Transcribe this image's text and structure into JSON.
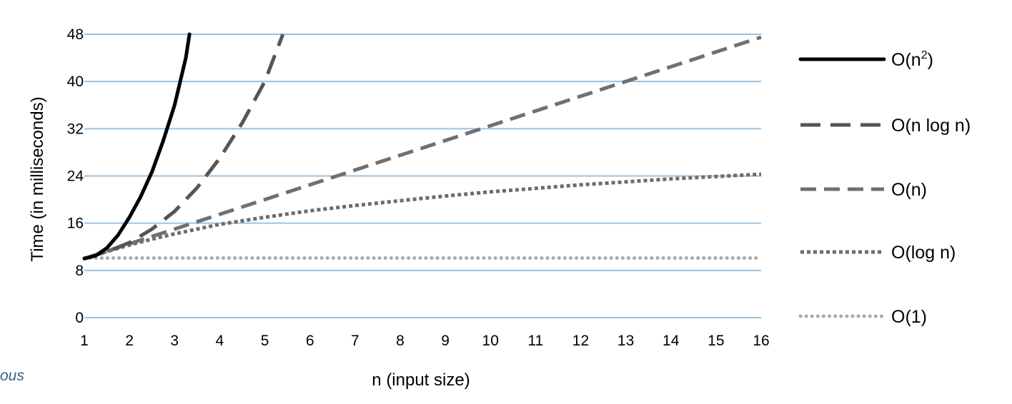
{
  "chart_data": {
    "type": "line",
    "xlabel": "n (input size)",
    "ylabel": "Time (in milliseconds)",
    "x": [
      1,
      2,
      3,
      4,
      5,
      6,
      7,
      8,
      9,
      10,
      11,
      12,
      13,
      14,
      15,
      16
    ],
    "xlim": [
      1,
      16
    ],
    "ylim": [
      0,
      48
    ],
    "yticks": [
      0,
      8,
      16,
      24,
      32,
      40,
      48
    ],
    "grid": true,
    "legend_position": "right",
    "series": [
      {
        "name": "O(n2)",
        "label_base": "O(n",
        "label_sup": "2",
        "label_end": ")",
        "style": "solid",
        "color": "#000000",
        "points": [
          [
            1,
            10
          ],
          [
            1.25,
            10.5
          ],
          [
            1.5,
            11.8
          ],
          [
            1.75,
            14
          ],
          [
            2,
            17
          ],
          [
            2.25,
            20.5
          ],
          [
            2.5,
            24.7
          ],
          [
            2.75,
            30
          ],
          [
            3,
            36
          ],
          [
            3.25,
            44
          ],
          [
            3.33,
            48
          ]
        ]
      },
      {
        "name": "O(n log n)",
        "style": "longdash",
        "color": "#555555",
        "points": [
          [
            1,
            10
          ],
          [
            1.5,
            11.2
          ],
          [
            2,
            12.7
          ],
          [
            2.5,
            15
          ],
          [
            3,
            18
          ],
          [
            3.5,
            22
          ],
          [
            4,
            27
          ],
          [
            4.5,
            33
          ],
          [
            5,
            40
          ],
          [
            5.4,
            48
          ]
        ]
      },
      {
        "name": "O(n)",
        "style": "dash",
        "color": "#707070",
        "points": [
          [
            1,
            10
          ],
          [
            16,
            47.5
          ]
        ]
      },
      {
        "name": "O(log n)",
        "style": "dot",
        "color": "#6c6c6c",
        "points": [
          [
            1,
            10
          ],
          [
            1.5,
            11.2
          ],
          [
            2,
            12.3
          ],
          [
            2.5,
            13.3
          ],
          [
            3,
            14.2
          ],
          [
            4,
            15.8
          ],
          [
            5,
            17
          ],
          [
            6,
            18.1
          ],
          [
            7,
            19
          ],
          [
            8,
            19.8
          ],
          [
            9,
            20.6
          ],
          [
            10,
            21.3
          ],
          [
            11,
            21.9
          ],
          [
            12,
            22.5
          ],
          [
            13,
            23
          ],
          [
            14,
            23.5
          ],
          [
            15,
            23.9
          ],
          [
            16,
            24.3
          ]
        ]
      },
      {
        "name": "O(1)",
        "style": "dot-light",
        "color": "#aaaaaa",
        "points": [
          [
            1,
            10.1
          ],
          [
            16,
            10.1
          ]
        ]
      }
    ]
  },
  "stray_text": "ous"
}
